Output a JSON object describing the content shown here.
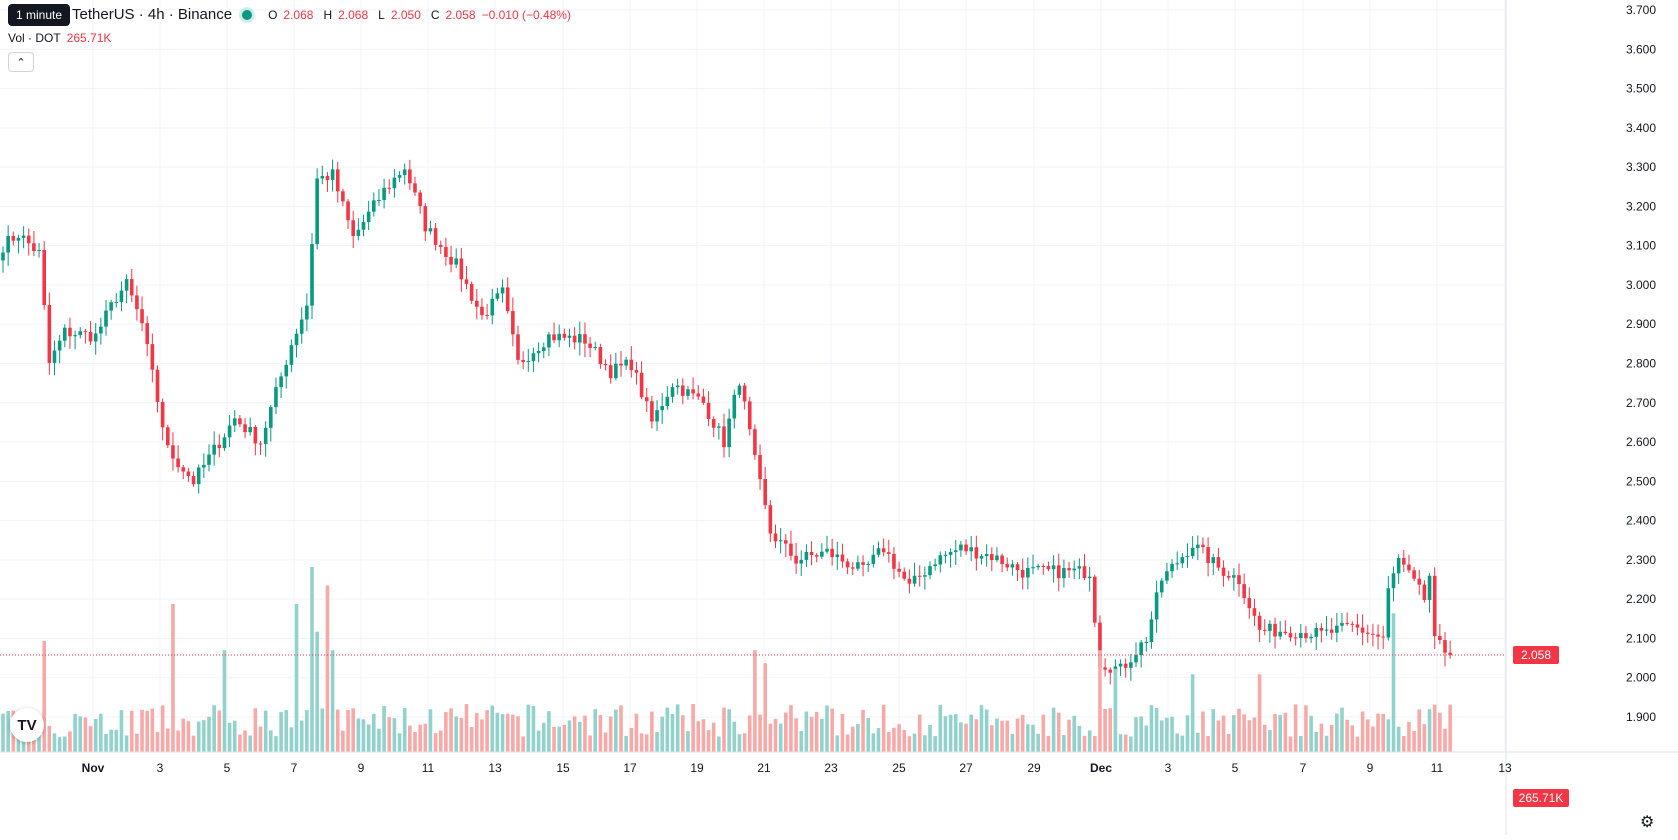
{
  "legend": {
    "symbol": "TetherUS · 4h · Binance",
    "open_label": "O",
    "open": "2.068",
    "high_label": "H",
    "high": "2.068",
    "low_label": "L",
    "low": "2.050",
    "close_label": "C",
    "close": "2.058",
    "change": "−0.010 (−0.48%)"
  },
  "tooltip": "1 minute",
  "volume_legend": {
    "label": "Vol · DOT",
    "value": "265.71K"
  },
  "collapse_icon": "chevron-up-icon",
  "logo_text": "TV",
  "settings_icon": "gear-icon",
  "colors": {
    "up": "#089981",
    "down": "#f23645",
    "up_vol": "#92d2cc",
    "down_vol": "#f7a9a7",
    "grid": "#f0f3fa"
  },
  "chart_data": {
    "type": "candlestick",
    "price_ticks": [
      "3.700",
      "3.600",
      "3.500",
      "3.400",
      "3.300",
      "3.200",
      "3.100",
      "3.000",
      "2.900",
      "2.800",
      "2.700",
      "2.600",
      "2.500",
      "2.400",
      "2.300",
      "2.200",
      "2.100",
      "2.000",
      "1.900"
    ],
    "ylim": [
      1.88,
      3.72
    ],
    "x_tick_labels": [
      "Nov",
      "3",
      "5",
      "7",
      "9",
      "11",
      "13",
      "15",
      "17",
      "19",
      "21",
      "23",
      "25",
      "27",
      "29",
      "Dec",
      "3",
      "5",
      "7",
      "9",
      "11",
      "13"
    ],
    "last_price_label": "2.058",
    "last_price": 2.058,
    "last_volume_label": "265.71K",
    "anchors": [
      {
        "bar": 0,
        "price": 3.1
      },
      {
        "bar": 3,
        "price": 3.13
      },
      {
        "bar": 7,
        "price": 3.08
      },
      {
        "bar": 9,
        "price": 2.8
      },
      {
        "bar": 12,
        "price": 2.88
      },
      {
        "bar": 18,
        "price": 2.87
      },
      {
        "bar": 22,
        "price": 2.97
      },
      {
        "bar": 24,
        "price": 3.0
      },
      {
        "bar": 27,
        "price": 2.9
      },
      {
        "bar": 29,
        "price": 2.77
      },
      {
        "bar": 32,
        "price": 2.58
      },
      {
        "bar": 37,
        "price": 2.5
      },
      {
        "bar": 40,
        "price": 2.56
      },
      {
        "bar": 45,
        "price": 2.66
      },
      {
        "bar": 50,
        "price": 2.6
      },
      {
        "bar": 56,
        "price": 2.85
      },
      {
        "bar": 59,
        "price": 2.95
      },
      {
        "bar": 61,
        "price": 3.27
      },
      {
        "bar": 64,
        "price": 3.28
      },
      {
        "bar": 68,
        "price": 3.12
      },
      {
        "bar": 74,
        "price": 3.24
      },
      {
        "bar": 78,
        "price": 3.3
      },
      {
        "bar": 82,
        "price": 3.15
      },
      {
        "bar": 88,
        "price": 3.05
      },
      {
        "bar": 93,
        "price": 2.92
      },
      {
        "bar": 97,
        "price": 2.98
      },
      {
        "bar": 100,
        "price": 2.8
      },
      {
        "bar": 106,
        "price": 2.87
      },
      {
        "bar": 113,
        "price": 2.86
      },
      {
        "bar": 118,
        "price": 2.78
      },
      {
        "bar": 122,
        "price": 2.8
      },
      {
        "bar": 126,
        "price": 2.65
      },
      {
        "bar": 130,
        "price": 2.75
      },
      {
        "bar": 136,
        "price": 2.7
      },
      {
        "bar": 140,
        "price": 2.6
      },
      {
        "bar": 143,
        "price": 2.76
      },
      {
        "bar": 146,
        "price": 2.55
      },
      {
        "bar": 149,
        "price": 2.37
      },
      {
        "bar": 154,
        "price": 2.3
      },
      {
        "bar": 160,
        "price": 2.32
      },
      {
        "bar": 167,
        "price": 2.27
      },
      {
        "bar": 171,
        "price": 2.33
      },
      {
        "bar": 176,
        "price": 2.23
      },
      {
        "bar": 181,
        "price": 2.3
      },
      {
        "bar": 186,
        "price": 2.33
      },
      {
        "bar": 192,
        "price": 2.31
      },
      {
        "bar": 198,
        "price": 2.27
      },
      {
        "bar": 206,
        "price": 2.27
      },
      {
        "bar": 211,
        "price": 2.27
      },
      {
        "bar": 213,
        "price": 2.04
      },
      {
        "bar": 217,
        "price": 2.02
      },
      {
        "bar": 222,
        "price": 2.1
      },
      {
        "bar": 225,
        "price": 2.25
      },
      {
        "bar": 231,
        "price": 2.34
      },
      {
        "bar": 236,
        "price": 2.28
      },
      {
        "bar": 240,
        "price": 2.25
      },
      {
        "bar": 244,
        "price": 2.12
      },
      {
        "bar": 250,
        "price": 2.12
      },
      {
        "bar": 256,
        "price": 2.11
      },
      {
        "bar": 262,
        "price": 2.13
      },
      {
        "bar": 268,
        "price": 2.1
      },
      {
        "bar": 269,
        "price": 2.22
      },
      {
        "bar": 271,
        "price": 2.3
      },
      {
        "bar": 276,
        "price": 2.2
      },
      {
        "bar": 277,
        "price": 2.26
      },
      {
        "bar": 278,
        "price": 2.09
      },
      {
        "bar": 281,
        "price": 2.058
      }
    ],
    "volume_spikes": [
      {
        "bar": 8,
        "value": 0.6
      },
      {
        "bar": 33,
        "value": 0.8
      },
      {
        "bar": 43,
        "value": 0.55
      },
      {
        "bar": 57,
        "value": 0.8
      },
      {
        "bar": 60,
        "value": 1.0
      },
      {
        "bar": 61,
        "value": 0.65
      },
      {
        "bar": 63,
        "value": 0.9
      },
      {
        "bar": 64,
        "value": 0.55
      },
      {
        "bar": 146,
        "value": 0.55
      },
      {
        "bar": 148,
        "value": 0.48
      },
      {
        "bar": 213,
        "value": 0.55
      },
      {
        "bar": 216,
        "value": 0.45
      },
      {
        "bar": 231,
        "value": 0.42
      },
      {
        "bar": 244,
        "value": 0.42
      },
      {
        "bar": 270,
        "value": 0.75
      }
    ],
    "bar_count": 282
  }
}
